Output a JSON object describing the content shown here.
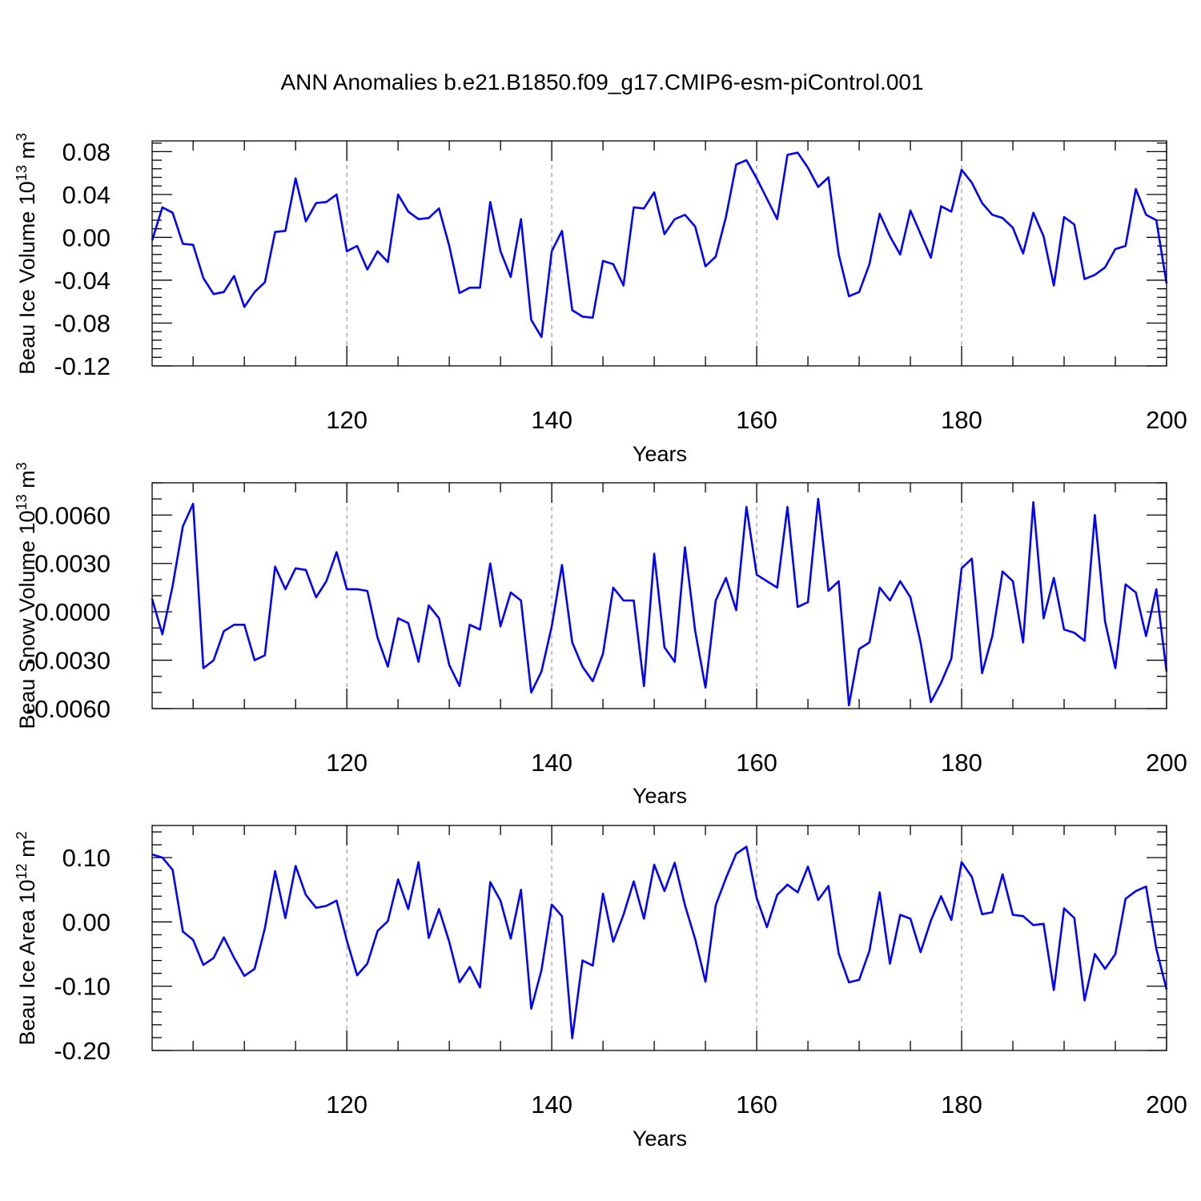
{
  "title": "ANN Anomalies b.e21.B1850.f09_g17.CMIP6-esm-piControl.001",
  "chart_data": [
    {
      "type": "line",
      "ylabel": "Beau Ice Volume 10",
      "ylabel_exp": "13",
      "ylabel_unit": " m",
      "ylabel_unit_exp": "3",
      "xlabel": "Years",
      "xlim": [
        101,
        200
      ],
      "ylim": [
        -0.12,
        0.09
      ],
      "yticks": [
        -0.12,
        -0.08,
        -0.04,
        0.0,
        0.04,
        0.08
      ],
      "ytick_labels": [
        "-0.12",
        "-0.08",
        "-0.04",
        "0.00",
        "0.04",
        "0.08"
      ],
      "xticks": [
        120,
        140,
        160,
        180,
        200
      ],
      "xtick_labels": [
        "120",
        "140",
        "160",
        "180",
        "200"
      ],
      "grid_x": [
        120,
        140,
        160,
        180
      ],
      "x_start": 101,
      "values": [
        -0.003,
        0.028,
        0.023,
        -0.006,
        -0.007,
        -0.038,
        -0.053,
        -0.051,
        -0.036,
        -0.065,
        -0.051,
        -0.042,
        0.005,
        0.006,
        0.055,
        0.015,
        0.032,
        0.033,
        0.04,
        -0.013,
        -0.008,
        -0.03,
        -0.013,
        -0.023,
        0.04,
        0.024,
        0.017,
        0.018,
        0.027,
        -0.008,
        -0.052,
        -0.047,
        -0.047,
        0.033,
        -0.013,
        -0.037,
        0.017,
        -0.077,
        -0.093,
        -0.013,
        0.006,
        -0.068,
        -0.074,
        -0.075,
        -0.022,
        -0.025,
        -0.045,
        0.028,
        0.027,
        0.042,
        0.003,
        0.017,
        0.021,
        0.01,
        -0.027,
        -0.018,
        0.019,
        0.068,
        0.072,
        0.055,
        0.036,
        0.017,
        0.077,
        0.079,
        0.065,
        0.047,
        0.056,
        -0.016,
        -0.055,
        -0.051,
        -0.025,
        0.022,
        0.001,
        -0.016,
        0.025,
        0.003,
        -0.019,
        0.029,
        0.024,
        0.063,
        0.051,
        0.032,
        0.021,
        0.018,
        0.009,
        -0.015,
        0.023,
        0.001,
        -0.045,
        0.019,
        0.012,
        -0.039,
        -0.035,
        -0.028,
        -0.011,
        -0.008,
        0.045,
        0.021,
        0.016,
        -0.043
      ]
    },
    {
      "type": "line",
      "ylabel": "Beau Snow Volume 10",
      "ylabel_exp": "13",
      "ylabel_unit": " m",
      "ylabel_unit_exp": "3",
      "xlabel": "Years",
      "xlim": [
        101,
        200
      ],
      "ylim": [
        -0.006,
        0.008
      ],
      "yticks": [
        -0.006,
        -0.003,
        0.0,
        0.003,
        0.006
      ],
      "ytick_labels": [
        "-0.0060",
        "-0.0030",
        "0.0000",
        "0.0030",
        "0.0060"
      ],
      "xticks": [
        120,
        140,
        160,
        180,
        200
      ],
      "xtick_labels": [
        "120",
        "140",
        "160",
        "180",
        "200"
      ],
      "grid_x": [
        120,
        140,
        160,
        180
      ],
      "x_start": 101,
      "values": [
        0.0008,
        -0.0014,
        0.0016,
        0.0053,
        0.0067,
        -0.0035,
        -0.003,
        -0.0012,
        -0.0008,
        -0.0008,
        -0.003,
        -0.0027,
        0.0028,
        0.0014,
        0.0027,
        0.0026,
        0.0009,
        0.0019,
        0.0037,
        0.0014,
        0.0014,
        0.0013,
        -0.0016,
        -0.0034,
        -0.0004,
        -0.0007,
        -0.0031,
        0.0004,
        -0.0004,
        -0.0033,
        -0.0046,
        -0.0008,
        -0.0011,
        0.003,
        -0.0009,
        0.0012,
        0.0007,
        -0.005,
        -0.0037,
        -0.0009,
        0.0029,
        -0.0019,
        -0.0034,
        -0.0043,
        -0.0026,
        0.0015,
        0.0007,
        0.0007,
        -0.0046,
        0.0036,
        -0.0022,
        -0.0031,
        0.004,
        -0.0012,
        -0.0047,
        0.0007,
        0.0021,
        0.0001,
        0.0065,
        0.0023,
        0.0019,
        0.0015,
        0.0065,
        0.0003,
        0.0006,
        0.007,
        0.0013,
        0.0019,
        -0.0058,
        -0.0023,
        -0.0019,
        0.0015,
        0.0007,
        0.0019,
        0.0009,
        -0.0019,
        -0.0056,
        -0.0044,
        -0.0029,
        0.0027,
        0.0033,
        -0.0038,
        -0.0015,
        0.0025,
        0.0019,
        -0.0019,
        0.0068,
        -0.0004,
        0.0021,
        -0.0011,
        -0.0013,
        -0.0018,
        0.006,
        -0.0006,
        -0.0035,
        0.0017,
        0.0012,
        -0.0015,
        0.0014,
        -0.0037
      ]
    },
    {
      "type": "line",
      "ylabel": "Beau Ice Area 10",
      "ylabel_exp": "12",
      "ylabel_unit": " m",
      "ylabel_unit_exp": "2",
      "xlabel": "Years",
      "xlim": [
        101,
        200
      ],
      "ylim": [
        -0.2,
        0.15
      ],
      "yticks": [
        -0.2,
        -0.1,
        0.0,
        0.1
      ],
      "ytick_labels": [
        "-0.20",
        "-0.10",
        "0.00",
        "0.10"
      ],
      "xticks": [
        120,
        140,
        160,
        180,
        200
      ],
      "xtick_labels": [
        "120",
        "140",
        "160",
        "180",
        "200"
      ],
      "grid_x": [
        120,
        140,
        160,
        180
      ],
      "x_start": 101,
      "values": [
        0.105,
        0.1,
        0.081,
        -0.015,
        -0.028,
        -0.067,
        -0.056,
        -0.024,
        -0.056,
        -0.084,
        -0.073,
        -0.01,
        0.079,
        0.006,
        0.087,
        0.042,
        0.022,
        0.025,
        0.033,
        -0.029,
        -0.083,
        -0.065,
        -0.014,
        0.001,
        0.066,
        0.02,
        0.093,
        -0.025,
        0.02,
        -0.031,
        -0.094,
        -0.07,
        -0.102,
        0.062,
        0.033,
        -0.026,
        0.05,
        -0.135,
        -0.075,
        0.027,
        0.009,
        -0.181,
        -0.06,
        -0.068,
        0.044,
        -0.031,
        0.011,
        0.063,
        0.005,
        0.089,
        0.048,
        0.092,
        0.026,
        -0.027,
        -0.093,
        0.026,
        0.068,
        0.106,
        0.117,
        0.037,
        -0.008,
        0.042,
        0.058,
        0.046,
        0.086,
        0.034,
        0.056,
        -0.049,
        -0.094,
        -0.09,
        -0.045,
        0.046,
        -0.065,
        0.011,
        0.005,
        -0.047,
        0.002,
        0.04,
        0.003,
        0.093,
        0.07,
        0.012,
        0.015,
        0.074,
        0.011,
        0.009,
        -0.005,
        -0.003,
        -0.106,
        0.021,
        0.006,
        -0.122,
        -0.05,
        -0.073,
        -0.05,
        0.036,
        0.048,
        0.055,
        -0.042,
        -0.105
      ]
    }
  ]
}
